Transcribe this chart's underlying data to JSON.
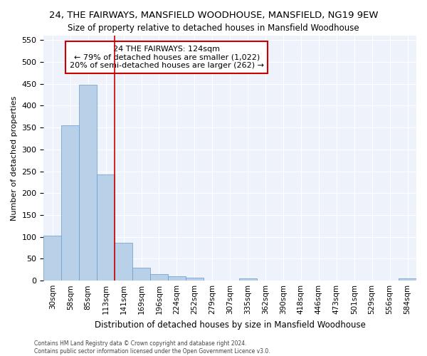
{
  "title": "24, THE FAIRWAYS, MANSFIELD WOODHOUSE, MANSFIELD, NG19 9EW",
  "subtitle": "Size of property relative to detached houses in Mansfield Woodhouse",
  "xlabel": "Distribution of detached houses by size in Mansfield Woodhouse",
  "ylabel": "Number of detached properties",
  "categories": [
    "30sqm",
    "58sqm",
    "85sqm",
    "113sqm",
    "141sqm",
    "169sqm",
    "196sqm",
    "224sqm",
    "252sqm",
    "279sqm",
    "307sqm",
    "335sqm",
    "362sqm",
    "390sqm",
    "418sqm",
    "446sqm",
    "473sqm",
    "501sqm",
    "529sqm",
    "556sqm",
    "584sqm"
  ],
  "values": [
    103,
    355,
    448,
    243,
    86,
    30,
    15,
    10,
    6,
    0,
    0,
    5,
    0,
    0,
    0,
    0,
    0,
    0,
    0,
    0,
    5
  ],
  "bar_color": "#b8d0e8",
  "bar_edge_color": "#6699cc",
  "vline_x": 3.5,
  "vline_color": "#cc0000",
  "annotation_line1": "24 THE FAIRWAYS: 124sqm",
  "annotation_line2": "← 79% of detached houses are smaller (1,022)",
  "annotation_line3": "20% of semi-detached houses are larger (262) →",
  "annotation_box_color": "white",
  "annotation_box_edge": "#cc0000",
  "ylim": [
    0,
    560
  ],
  "yticks": [
    0,
    50,
    100,
    150,
    200,
    250,
    300,
    350,
    400,
    450,
    500,
    550
  ],
  "footer1": "Contains HM Land Registry data © Crown copyright and database right 2024.",
  "footer2": "Contains public sector information licensed under the Open Government Licence v3.0.",
  "bg_color": "#eef2fb",
  "title_fontsize": 9.5,
  "subtitle_fontsize": 8.5,
  "figsize": [
    6.0,
    5.0
  ],
  "dpi": 100
}
